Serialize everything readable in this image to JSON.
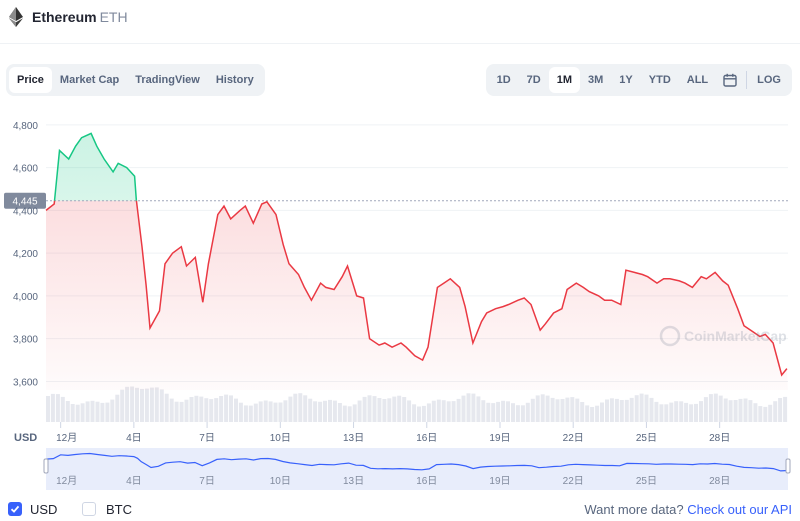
{
  "header": {
    "coin_name": "Ethereum",
    "coin_symbol": "ETH"
  },
  "tabs": [
    "Price",
    "Market Cap",
    "TradingView",
    "History"
  ],
  "active_tab": 0,
  "ranges": [
    "1D",
    "7D",
    "1M",
    "3M",
    "1Y",
    "YTD",
    "ALL"
  ],
  "active_range": 2,
  "log_label": "LOG",
  "currency_label": "USD",
  "watermark": "CoinMarketCap",
  "footer": {
    "usd_label": "USD",
    "btc_label": "BTC",
    "prompt": "Want more data?",
    "link": "Check out our API"
  },
  "colors": {
    "up": "#16c784",
    "down": "#ea3943",
    "accent": "#3861fb"
  },
  "chart_data": {
    "type": "line",
    "ylabel": "",
    "y_ticks": [
      3600,
      3800,
      4000,
      4200,
      4400,
      4600,
      4800
    ],
    "ylim": [
      3560,
      4860
    ],
    "x_tick_labels": [
      "12月",
      "4日",
      "7日",
      "10日",
      "13日",
      "16日",
      "19日",
      "22日",
      "25日",
      "28日"
    ],
    "x_tick_days": [
      0,
      3,
      6,
      9,
      12,
      15,
      18,
      21,
      24,
      27
    ],
    "xlim_days": [
      -0.6,
      29.8
    ],
    "reference_price": 4445,
    "reference_label": "4,445",
    "series": [
      {
        "x": [
          -0.6,
          -0.3,
          0,
          0.3,
          0.6,
          0.9,
          1.2,
          1.5,
          1.8,
          2.1,
          2.4,
          2.7,
          3.0,
          3.15,
          3.3,
          3.5,
          3.7,
          4.0,
          4.3,
          4.6,
          4.9,
          5.2,
          5.5,
          5.8,
          6.1,
          6.4,
          6.7,
          7.0,
          7.3,
          7.6,
          7.9,
          8.2,
          8.5,
          8.8,
          9.1,
          9.4,
          9.7,
          10.0,
          10.3,
          10.6,
          10.9,
          11.2,
          11.5,
          11.8,
          12.1,
          12.4,
          12.7,
          13.0,
          13.3,
          13.6,
          13.9,
          14.2,
          14.5,
          14.8,
          15.1,
          15.4,
          15.7,
          16.0,
          16.3,
          16.6,
          16.9,
          17.2,
          17.5,
          17.8,
          18.1,
          18.4,
          18.7,
          19.0,
          19.3,
          19.6,
          19.9,
          20.2,
          20.5,
          20.8,
          21.1,
          21.4,
          21.7,
          22.0,
          22.3,
          22.6,
          22.9,
          23.2,
          23.5,
          23.8,
          24.1,
          24.4,
          24.7,
          25.0,
          25.3,
          25.6,
          25.9,
          26.2,
          26.5,
          26.8,
          27.1,
          27.4,
          27.7,
          28.0,
          28.3,
          28.6,
          28.9,
          29.2,
          29.5,
          29.8
        ],
        "y": [
          4400,
          4430,
          4680,
          4640,
          4700,
          4740,
          4760,
          4700,
          4640,
          4580,
          4620,
          4600,
          4560,
          4450,
          4230,
          4050,
          3850,
          3930,
          4150,
          4200,
          4230,
          4140,
          4180,
          3970,
          4150,
          4380,
          4420,
          4360,
          4400,
          4420,
          4340,
          4430,
          4440,
          4380,
          4240,
          4150,
          4100,
          4040,
          3980,
          4060,
          4040,
          4030,
          4090,
          4140,
          4000,
          3990,
          3800,
          3770,
          3780,
          3760,
          3780,
          3760,
          3720,
          3700,
          3760,
          4040,
          4060,
          4080,
          4040,
          3950,
          3780,
          3880,
          3920,
          3940,
          3950,
          3960,
          3980,
          3990,
          3960,
          3840,
          3870,
          3920,
          3940,
          4030,
          4060,
          4040,
          4020,
          4000,
          3980,
          3980,
          3960,
          4120,
          4110,
          4100,
          4090,
          4060,
          4080,
          4080,
          4070,
          4060,
          4040,
          4090,
          4080,
          4110,
          4070,
          4050,
          3940,
          3860,
          3840,
          3810,
          3820,
          3780,
          3630,
          3660
        ]
      }
    ]
  }
}
